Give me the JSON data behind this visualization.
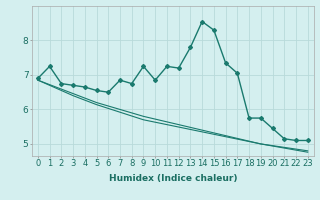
{
  "xlabel": "Humidex (Indice chaleur)",
  "background_color": "#d4efef",
  "grid_color": "#b8dada",
  "line_color": "#1a7a6e",
  "x_values": [
    0,
    1,
    2,
    3,
    4,
    5,
    6,
    7,
    8,
    9,
    10,
    11,
    12,
    13,
    14,
    15,
    16,
    17,
    18,
    19,
    20,
    21,
    22,
    23
  ],
  "curve1_y": [
    6.9,
    7.25,
    6.75,
    6.7,
    6.65,
    6.55,
    6.5,
    6.85,
    6.75,
    7.25,
    6.85,
    7.25,
    7.2,
    7.8,
    8.55,
    8.3,
    7.35,
    7.05,
    5.75,
    5.75,
    5.45,
    5.15,
    5.1,
    5.1
  ],
  "line1_y": [
    6.85,
    6.72,
    6.59,
    6.46,
    6.33,
    6.2,
    6.1,
    6.0,
    5.9,
    5.8,
    5.72,
    5.64,
    5.56,
    5.48,
    5.4,
    5.32,
    5.24,
    5.16,
    5.08,
    5.0,
    4.94,
    4.88,
    4.82,
    4.76
  ],
  "line2_y": [
    6.85,
    6.7,
    6.55,
    6.4,
    6.27,
    6.14,
    6.03,
    5.92,
    5.81,
    5.7,
    5.63,
    5.56,
    5.49,
    5.42,
    5.35,
    5.28,
    5.21,
    5.14,
    5.07,
    5.0,
    4.95,
    4.9,
    4.85,
    4.8
  ],
  "ylim": [
    4.65,
    9.0
  ],
  "xlim": [
    -0.5,
    23.5
  ],
  "yticks": [
    5,
    6,
    7,
    8
  ],
  "xticks": [
    0,
    1,
    2,
    3,
    4,
    5,
    6,
    7,
    8,
    9,
    10,
    11,
    12,
    13,
    14,
    15,
    16,
    17,
    18,
    19,
    20,
    21,
    22,
    23
  ],
  "tick_color": "#1a6e62",
  "label_fontsize": 6.0,
  "xlabel_fontsize": 6.5
}
